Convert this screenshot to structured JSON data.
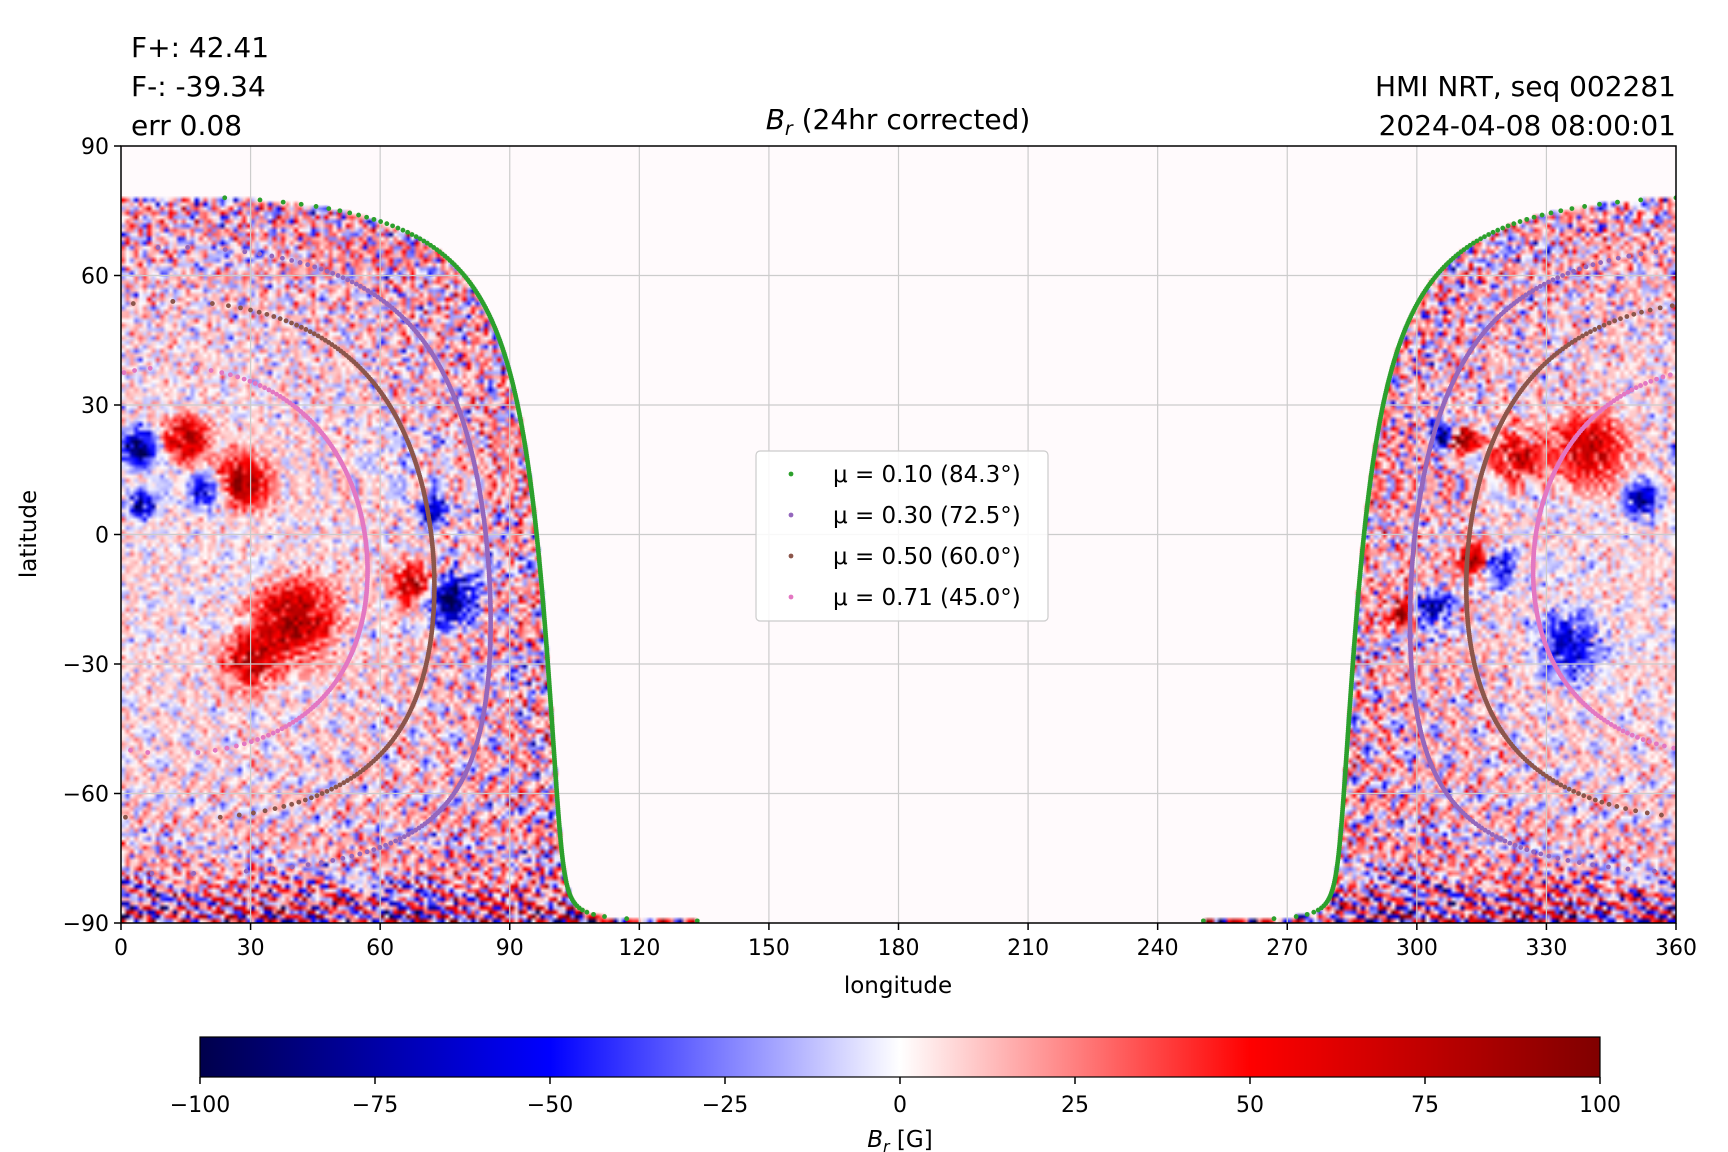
{
  "header": {
    "flux_pos": "F+: 42.41",
    "flux_neg": "F-: -39.34",
    "err": "err 0.08",
    "instrument": "HMI NRT, seq 002281",
    "timestamp": "2024-04-08 08:00:01"
  },
  "chart_data": {
    "type": "heatmap",
    "title_main": "B",
    "title_sub": "r",
    "title_rest": " (24hr corrected)",
    "xlabel": "longitude",
    "ylabel": "latitude",
    "xlim": [
      0,
      360
    ],
    "ylim": [
      -90,
      90
    ],
    "xticks": [
      0,
      30,
      60,
      90,
      120,
      150,
      180,
      210,
      240,
      270,
      300,
      330,
      360
    ],
    "yticks": [
      -90,
      -60,
      -30,
      0,
      30,
      60,
      90
    ],
    "xtick_labels": [
      "0",
      "30",
      "60",
      "90",
      "120",
      "150",
      "180",
      "210",
      "240",
      "270",
      "300",
      "330",
      "360"
    ],
    "ytick_labels": [
      "−90",
      "−60",
      "−30",
      "0",
      "30",
      "60",
      "90"
    ],
    "grid": true,
    "disk_center": {
      "longitude": 12,
      "latitude": -6
    },
    "mu_contours": [
      {
        "mu": 0.1,
        "angle_deg": 84.3,
        "label": "μ = 0.10 (84.3°)",
        "color": "#2ca02c"
      },
      {
        "mu": 0.3,
        "angle_deg": 72.5,
        "label": "μ = 0.30 (72.5°)",
        "color": "#9467bd"
      },
      {
        "mu": 0.5,
        "angle_deg": 60.0,
        "label": "μ = 0.50 (60.0°)",
        "color": "#8c564b"
      },
      {
        "mu": 0.71,
        "angle_deg": 45.0,
        "label": "μ = 0.71 (45.0°)",
        "color": "#e377c2"
      }
    ],
    "legend_location": "center",
    "colorbar": {
      "label_main": "B",
      "label_sub": "r",
      "label_rest": " [G]",
      "min": -100,
      "max": 100,
      "ticks": [
        -100,
        -75,
        -50,
        -25,
        0,
        25,
        50,
        75,
        100
      ],
      "tick_labels": [
        "−100",
        "−75",
        "−50",
        "−25",
        "0",
        "25",
        "50",
        "75",
        "100"
      ],
      "colormap": "seismic"
    },
    "colors": {
      "negative_strong": "#00004c",
      "negative": "#0000ff",
      "zero": "#ffffff",
      "positive": "#ff0000",
      "positive_strong": "#800000",
      "grid": "#cccccc",
      "background": "#fffafc"
    }
  }
}
